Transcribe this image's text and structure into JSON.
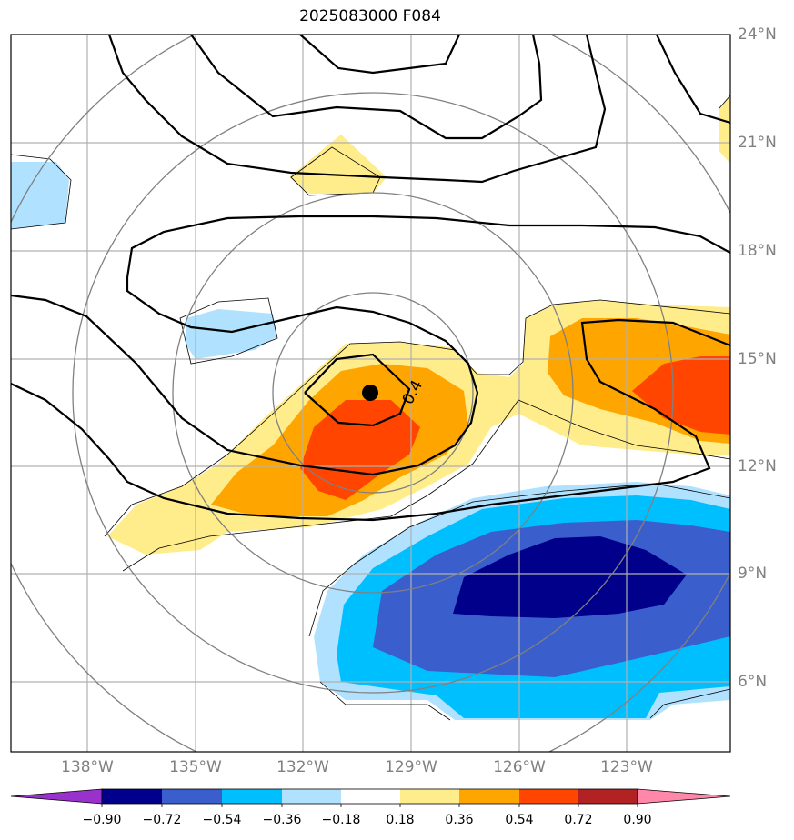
{
  "title": "2025083000 F084",
  "lat_labels": [
    "24°N",
    "21°N",
    "18°N",
    "15°N",
    "12°N",
    "9°N",
    "6°N"
  ],
  "lon_labels": [
    "138°W",
    "135°W",
    "132°W",
    "129°W",
    "126°W",
    "123°W"
  ],
  "contour_label": "0.4",
  "colorbar": {
    "ticks": [
      "−0.90",
      "−0.72",
      "−0.54",
      "−0.36",
      "−0.18",
      "0.18",
      "0.36",
      "0.54",
      "0.72",
      "0.90"
    ],
    "colors": [
      "#9932cc",
      "#00008b",
      "#3a5fcd",
      "#00bfff",
      "#b0e2ff",
      "#ffffff",
      "#ffec8b",
      "#ffa500",
      "#ff4500",
      "#b22222",
      "#ff88aa"
    ]
  },
  "map": {
    "extent_lon": [
      -140,
      -120
    ],
    "extent_lat": [
      4,
      24
    ],
    "storm_center": {
      "lon": -130.1,
      "lat": 14.0
    },
    "colors": {
      "neg_light": "#b0e2ff",
      "neg_mid": "#00bfff",
      "neg_strong": "#3a5fcd",
      "neg_max": "#00008b",
      "pos_light": "#ffec8b",
      "pos_mid": "#ffa500",
      "pos_strong": "#ff4500",
      "grid": "#b0b0b0",
      "rings": "#808080"
    }
  }
}
